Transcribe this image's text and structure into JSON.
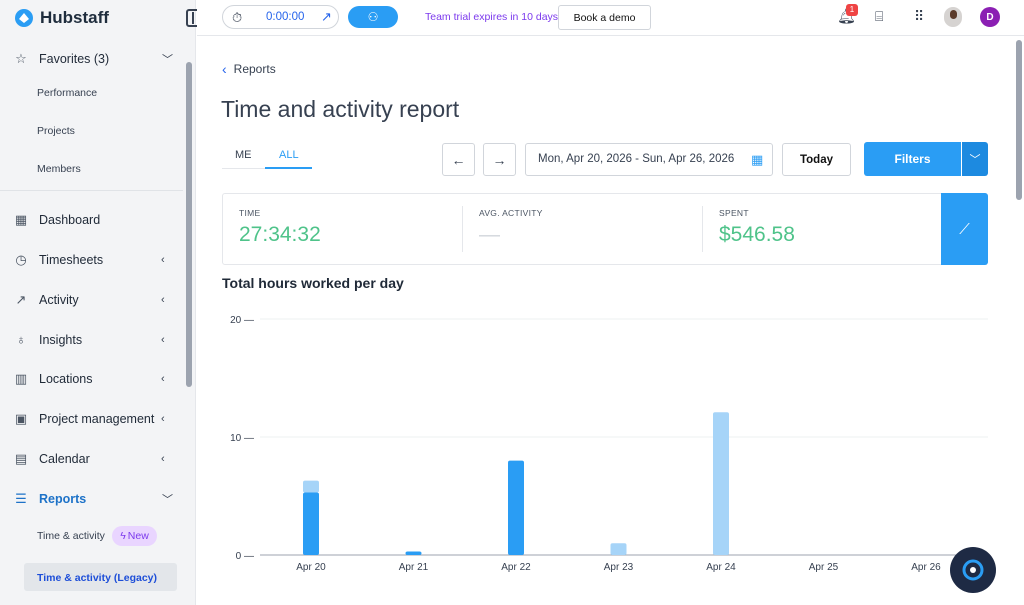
{
  "brand": {
    "name": "Hubstaff"
  },
  "sidebar": {
    "favorites_label": "Favorites (3)",
    "favorites": [
      "Performance",
      "Projects",
      "Members"
    ],
    "items": [
      {
        "label": "Dashboard",
        "icon": "dashboard-icon"
      },
      {
        "label": "Timesheets",
        "icon": "clock-icon"
      },
      {
        "label": "Activity",
        "icon": "activity-icon"
      },
      {
        "label": "Insights",
        "icon": "lightbulb-icon"
      },
      {
        "label": "Locations",
        "icon": "map-icon"
      },
      {
        "label": "Project management",
        "icon": "board-icon"
      },
      {
        "label": "Calendar",
        "icon": "calendar-icon"
      },
      {
        "label": "Reports",
        "icon": "reports-icon"
      }
    ],
    "reports_sub": [
      "Time & activity",
      "Time & activity (Legacy)"
    ],
    "new_badge": "New"
  },
  "topbar": {
    "timer": "0:00:00",
    "trial_text": "Team trial expires in 10 days.",
    "demo_label": "Book a demo",
    "notif_count": "1",
    "avatar_letter": "D"
  },
  "main": {
    "back_label": "Reports",
    "title": "Time and activity report",
    "tabs": [
      "ME",
      "ALL"
    ],
    "date_range": "Mon, Apr 20, 2026 - Sun, Apr 26, 2026",
    "today_label": "Today",
    "filters_label": "Filters",
    "stats": [
      {
        "label": "TIME",
        "value": "27:34:32"
      },
      {
        "label": "AVG. ACTIVITY",
        "value": "—"
      },
      {
        "label": "SPENT",
        "value": "$546.58"
      }
    ],
    "chart_title": "Total hours worked per day"
  },
  "chart_data": {
    "type": "bar",
    "title": "Total hours worked per day",
    "categories": [
      "Apr 20",
      "Apr 21",
      "Apr 22",
      "Apr 23",
      "Apr 24",
      "Apr 25",
      "Apr 26"
    ],
    "series": [
      {
        "values": [
          5.3,
          0.3,
          8.0,
          0,
          0,
          0,
          0
        ],
        "color": "#2a9df4"
      },
      {
        "values": [
          1.0,
          0,
          0,
          1.0,
          12.1,
          0,
          0
        ],
        "color": "#a6d4f8"
      }
    ],
    "yticks": [
      0,
      10,
      20
    ],
    "ylim": [
      0,
      20
    ],
    "stacked": true,
    "grid": true
  }
}
